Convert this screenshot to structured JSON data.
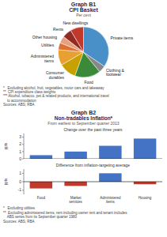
{
  "chart_data": [
    {
      "type": "pie",
      "title": "Graph B1",
      "subtitle": [
        "CPI Basket",
        "Per cent"
      ],
      "categories": [
        "New dwellings",
        "Rents",
        "Other housing",
        "Utilities",
        "Administered\nitems",
        "Consumer\ndurables",
        "Food",
        "Clothing &\nfootwear",
        "Private items"
      ],
      "values": [
        8.5,
        6.0,
        4.5,
        4.5,
        10.0,
        11.0,
        16.5,
        4.5,
        34.5
      ],
      "colors": [
        "#c0392b",
        "#922b21",
        "#e8a080",
        "#e07030",
        "#e8a030",
        "#c8a000",
        "#3a8a3a",
        "#888888",
        "#4a90c8"
      ],
      "annotations": [
        "*   Excluding alcohol, fruit, vegetables, motor cars and takeaway",
        "**  CPI expenditure class weights",
        "*** Alcohol, tobacco, pet & related products, and international travel\n    to accommodation",
        "Sources: ABS; RBA"
      ]
    },
    {
      "type": "bar",
      "title": "Change over the past three years",
      "annotations": [
        "Graph B2",
        "Non-tradables Inflation*",
        "From earliest to September quarter 2013"
      ],
      "categories": [
        "Food",
        "Market\nservices",
        "Administered\nitems",
        "Housing"
      ],
      "values": [
        0.5,
        1.0,
        1.8,
        2.8
      ],
      "colors": [
        "#4472c4",
        "#4472c4",
        "#4472c4",
        "#4472c4"
      ],
      "ylim": [
        0,
        3.5
      ],
      "yticks": [
        0,
        1,
        2,
        3
      ],
      "ylabel": "ppts",
      "tick_labels": "y"
    },
    {
      "type": "bar",
      "title": "Difference from inflation-targeting average",
      "categories": [
        "Food",
        "Market\nservices",
        "Administered\nitems",
        "Housing"
      ],
      "values": [
        -0.8,
        -0.5,
        1.0,
        -0.3
      ],
      "colors": [
        "#c0392b",
        "#c0392b",
        "#4472c4",
        "#c0392b"
      ],
      "ylim": [
        -1.5,
        1.5
      ],
      "yticks": [
        -1,
        0,
        1
      ],
      "ylabel": "ppts",
      "annotations": [
        "*   Excluding utilities",
        "**  Excluding administered items, rent including owner rent and tenant includes\n    ABS series from its September quarter 1980",
        "Sources: ABS; RBA"
      ]
    }
  ]
}
